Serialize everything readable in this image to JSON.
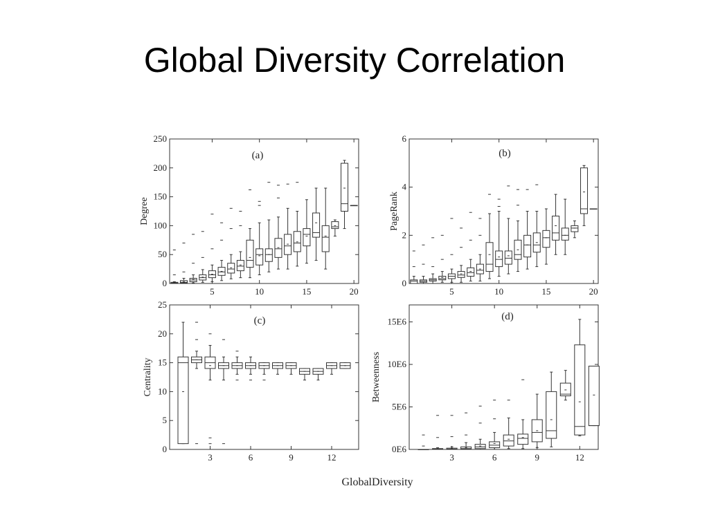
{
  "slide": {
    "title": "Global Diversity Correlation"
  },
  "figure": {
    "xlabel": "GlobalDiversity"
  },
  "chart_data": [
    {
      "type": "box",
      "panel_label": "(a)",
      "ylabel": "Degree",
      "xlim": [
        0.5,
        20.5
      ],
      "ylim": [
        0,
        250
      ],
      "xticks": [
        5,
        10,
        15,
        20
      ],
      "yticks": [
        0,
        50,
        100,
        150,
        200,
        250
      ],
      "boxes": [
        {
          "x": 1,
          "q1": 0,
          "med": 1,
          "q3": 2,
          "wlo": 0,
          "whi": 3,
          "mean": 1.5,
          "outliers": [
            15,
            58
          ]
        },
        {
          "x": 2,
          "q1": 1,
          "med": 2,
          "q3": 5,
          "wlo": 0,
          "whi": 9,
          "mean": 3,
          "outliers": [
            20,
            70
          ]
        },
        {
          "x": 3,
          "q1": 3,
          "med": 6,
          "q3": 9,
          "wlo": 1,
          "whi": 15,
          "mean": 7,
          "outliers": [
            35,
            85
          ]
        },
        {
          "x": 4,
          "q1": 6,
          "med": 10,
          "q3": 15,
          "wlo": 2,
          "whi": 24,
          "mean": 11,
          "outliers": [
            45,
            90
          ]
        },
        {
          "x": 5,
          "q1": 10,
          "med": 15,
          "q3": 22,
          "wlo": 3,
          "whi": 32,
          "mean": 16,
          "outliers": [
            60,
            120
          ]
        },
        {
          "x": 6,
          "q1": 14,
          "med": 20,
          "q3": 28,
          "wlo": 5,
          "whi": 40,
          "mean": 21,
          "outliers": [
            75,
            105
          ]
        },
        {
          "x": 7,
          "q1": 18,
          "med": 25,
          "q3": 35,
          "wlo": 8,
          "whi": 50,
          "mean": 27,
          "outliers": [
            95,
            130
          ]
        },
        {
          "x": 8,
          "q1": 22,
          "med": 30,
          "q3": 40,
          "wlo": 10,
          "whi": 55,
          "mean": 32,
          "outliers": [
            100,
            125
          ]
        },
        {
          "x": 9,
          "q1": 28,
          "med": 40,
          "q3": 75,
          "wlo": 10,
          "whi": 95,
          "mean": 45,
          "outliers": [
            162
          ]
        },
        {
          "x": 10,
          "q1": 32,
          "med": 50,
          "q3": 60,
          "wlo": 15,
          "whi": 105,
          "mean": 48,
          "outliers": [
            135,
            142
          ]
        },
        {
          "x": 11,
          "q1": 38,
          "med": 50,
          "q3": 60,
          "wlo": 20,
          "whi": 110,
          "mean": 50,
          "outliers": [
            175
          ]
        },
        {
          "x": 12,
          "q1": 45,
          "med": 60,
          "q3": 78,
          "wlo": 25,
          "whi": 115,
          "mean": 62,
          "outliers": [
            148,
            170
          ]
        },
        {
          "x": 13,
          "q1": 50,
          "med": 65,
          "q3": 85,
          "wlo": 25,
          "whi": 130,
          "mean": 68,
          "outliers": [
            172
          ]
        },
        {
          "x": 14,
          "q1": 55,
          "med": 70,
          "q3": 90,
          "wlo": 30,
          "whi": 125,
          "mean": 72,
          "outliers": [
            175
          ]
        },
        {
          "x": 15,
          "q1": 65,
          "med": 85,
          "q3": 95,
          "wlo": 35,
          "whi": 145,
          "mean": 82,
          "outliers": []
        },
        {
          "x": 16,
          "q1": 80,
          "med": 88,
          "q3": 122,
          "wlo": 40,
          "whi": 165,
          "mean": 105,
          "outliers": []
        },
        {
          "x": 17,
          "q1": 55,
          "med": 80,
          "q3": 100,
          "wlo": 25,
          "whi": 165,
          "mean": 82,
          "outliers": []
        },
        {
          "x": 18,
          "q1": 95,
          "med": 98,
          "q3": 107,
          "wlo": 82,
          "whi": 110,
          "mean": 100,
          "outliers": []
        },
        {
          "x": 19,
          "q1": 125,
          "med": 138,
          "q3": 208,
          "wlo": 95,
          "whi": 213,
          "mean": 165,
          "outliers": []
        },
        {
          "x": 20,
          "q1": 135,
          "med": 135,
          "q3": 135,
          "wlo": 135,
          "whi": 135,
          "mean": 135,
          "outliers": []
        }
      ]
    },
    {
      "type": "box",
      "panel_label": "(b)",
      "ylabel": "PageRank",
      "xlim": [
        0.5,
        20.5
      ],
      "ylim": [
        0,
        6
      ],
      "xticks": [
        5,
        10,
        15,
        20
      ],
      "yticks": [
        0,
        2,
        4,
        6
      ],
      "boxes": [
        {
          "x": 1,
          "q1": 0.0,
          "med": 0.1,
          "q3": 0.15,
          "wlo": 0.0,
          "whi": 0.3,
          "mean": 0.1,
          "outliers": [
            0.7,
            1.35
          ]
        },
        {
          "x": 2,
          "q1": 0.05,
          "med": 0.1,
          "q3": 0.15,
          "wlo": 0.0,
          "whi": 0.3,
          "mean": 0.1,
          "outliers": [
            0.8,
            1.6
          ]
        },
        {
          "x": 3,
          "q1": 0.1,
          "med": 0.15,
          "q3": 0.2,
          "wlo": 0.0,
          "whi": 0.4,
          "mean": 0.15,
          "outliers": [
            0.7,
            1.9
          ]
        },
        {
          "x": 4,
          "q1": 0.15,
          "med": 0.2,
          "q3": 0.3,
          "wlo": 0.05,
          "whi": 0.5,
          "mean": 0.25,
          "outliers": [
            1.0,
            2.0
          ]
        },
        {
          "x": 5,
          "q1": 0.2,
          "med": 0.3,
          "q3": 0.4,
          "wlo": 0.05,
          "whi": 0.6,
          "mean": 0.3,
          "outliers": [
            1.2,
            2.7
          ]
        },
        {
          "x": 6,
          "q1": 0.25,
          "med": 0.35,
          "q3": 0.5,
          "wlo": 0.05,
          "whi": 0.75,
          "mean": 0.4,
          "outliers": [
            1.5,
            2.3
          ]
        },
        {
          "x": 7,
          "q1": 0.3,
          "med": 0.45,
          "q3": 0.65,
          "wlo": 0.1,
          "whi": 1.0,
          "mean": 0.5,
          "outliers": [
            1.8,
            2.95
          ]
        },
        {
          "x": 8,
          "q1": 0.4,
          "med": 0.55,
          "q3": 0.8,
          "wlo": 0.1,
          "whi": 1.2,
          "mean": 0.6,
          "outliers": [
            2.0,
            2.7
          ]
        },
        {
          "x": 9,
          "q1": 0.5,
          "med": 0.8,
          "q3": 1.7,
          "wlo": 0.2,
          "whi": 2.9,
          "mean": 1.2,
          "outliers": [
            3.7
          ]
        },
        {
          "x": 10,
          "q1": 0.7,
          "med": 1.0,
          "q3": 1.35,
          "wlo": 0.3,
          "whi": 3.0,
          "mean": 1.1,
          "outliers": [
            3.2,
            3.5
          ]
        },
        {
          "x": 11,
          "q1": 0.8,
          "med": 1.05,
          "q3": 1.35,
          "wlo": 0.4,
          "whi": 2.7,
          "mean": 1.15,
          "outliers": [
            4.05
          ]
        },
        {
          "x": 12,
          "q1": 1.0,
          "med": 1.2,
          "q3": 1.8,
          "wlo": 0.5,
          "whi": 2.6,
          "mean": 1.4,
          "outliers": [
            3.25,
            3.9
          ]
        },
        {
          "x": 13,
          "q1": 1.1,
          "med": 1.6,
          "q3": 2.0,
          "wlo": 0.6,
          "whi": 3.0,
          "mean": 1.6,
          "outliers": [
            3.9
          ]
        },
        {
          "x": 14,
          "q1": 1.3,
          "med": 1.6,
          "q3": 2.1,
          "wlo": 0.7,
          "whi": 3.0,
          "mean": 1.7,
          "outliers": [
            4.1
          ]
        },
        {
          "x": 15,
          "q1": 1.5,
          "med": 1.9,
          "q3": 2.2,
          "wlo": 0.8,
          "whi": 3.1,
          "mean": 1.9,
          "outliers": []
        },
        {
          "x": 16,
          "q1": 1.8,
          "med": 2.1,
          "q3": 2.8,
          "wlo": 1.2,
          "whi": 3.7,
          "mean": 2.4,
          "outliers": []
        },
        {
          "x": 17,
          "q1": 1.8,
          "med": 2.0,
          "q3": 2.3,
          "wlo": 1.2,
          "whi": 3.5,
          "mean": 2.0,
          "outliers": []
        },
        {
          "x": 18,
          "q1": 2.15,
          "med": 2.3,
          "q3": 2.4,
          "wlo": 1.9,
          "whi": 2.6,
          "mean": 2.3,
          "outliers": []
        },
        {
          "x": 19,
          "q1": 2.9,
          "med": 3.1,
          "q3": 4.8,
          "wlo": 2.4,
          "whi": 4.9,
          "mean": 3.8,
          "outliers": []
        },
        {
          "x": 20,
          "q1": 3.1,
          "med": 3.1,
          "q3": 3.1,
          "wlo": 3.1,
          "whi": 3.1,
          "mean": 3.1,
          "outliers": []
        }
      ]
    },
    {
      "type": "box",
      "panel_label": "(c)",
      "ylabel": "Centrality",
      "xlim": [
        0,
        14
      ],
      "ylim": [
        0,
        25
      ],
      "xticks": [
        3,
        6,
        9,
        12
      ],
      "yticks": [
        0,
        5,
        10,
        15,
        20,
        25
      ],
      "boxes": [
        {
          "x": 1,
          "q1": 1,
          "med": 15,
          "q3": 16,
          "wlo": 1,
          "whi": 22,
          "mean": 10,
          "outliers": []
        },
        {
          "x": 2,
          "q1": 15,
          "med": 15.5,
          "q3": 16,
          "wlo": 14,
          "whi": 17,
          "mean": 15.5,
          "outliers": [
            1,
            19,
            22
          ]
        },
        {
          "x": 3,
          "q1": 14,
          "med": 15,
          "q3": 16,
          "wlo": 12,
          "whi": 18,
          "mean": 14.5,
          "outliers": [
            1,
            2,
            20
          ]
        },
        {
          "x": 4,
          "q1": 14,
          "med": 14.5,
          "q3": 15,
          "wlo": 12,
          "whi": 16,
          "mean": 14.5,
          "outliers": [
            1,
            19
          ]
        },
        {
          "x": 5,
          "q1": 14,
          "med": 14.5,
          "q3": 15,
          "wlo": 13,
          "whi": 16,
          "mean": 14.5,
          "outliers": [
            12,
            17
          ]
        },
        {
          "x": 6,
          "q1": 14,
          "med": 14.5,
          "q3": 15,
          "wlo": 13,
          "whi": 16,
          "mean": 14.5,
          "outliers": [
            12
          ]
        },
        {
          "x": 7,
          "q1": 14,
          "med": 14.5,
          "q3": 15,
          "wlo": 13,
          "whi": 15,
          "mean": 14.5,
          "outliers": [
            12
          ]
        },
        {
          "x": 8,
          "q1": 14,
          "med": 14.5,
          "q3": 15,
          "wlo": 13,
          "whi": 15,
          "mean": 14.5,
          "outliers": []
        },
        {
          "x": 9,
          "q1": 14,
          "med": 14.5,
          "q3": 15,
          "wlo": 13,
          "whi": 15,
          "mean": 14.5,
          "outliers": []
        },
        {
          "x": 10,
          "q1": 13,
          "med": 13.5,
          "q3": 14,
          "wlo": 12,
          "whi": 14,
          "mean": 13.5,
          "outliers": []
        },
        {
          "x": 11,
          "q1": 13,
          "med": 13.5,
          "q3": 14,
          "wlo": 12,
          "whi": 14,
          "mean": 13.5,
          "outliers": []
        },
        {
          "x": 12,
          "q1": 14,
          "med": 14.5,
          "q3": 15,
          "wlo": 13,
          "whi": 15,
          "mean": 14.5,
          "outliers": []
        },
        {
          "x": 13,
          "q1": 14,
          "med": 14.5,
          "q3": 15,
          "wlo": 14,
          "whi": 15,
          "mean": 14.5,
          "outliers": []
        }
      ]
    },
    {
      "type": "box",
      "panel_label": "(d)",
      "ylabel": "Betweenness",
      "xlim": [
        0,
        13.3
      ],
      "ylim": [
        0,
        17000000
      ],
      "xticks": [
        3,
        6,
        9,
        12
      ],
      "ytick_values": [
        0,
        5000000,
        10000000,
        15000000
      ],
      "ytick_labels": [
        "0E6",
        "5E6",
        "10E6",
        "15E6"
      ],
      "boxes": [
        {
          "x": 1,
          "q1": 0,
          "med": 0,
          "q3": 0,
          "wlo": 0,
          "whi": 0,
          "mean": 0,
          "outliers": [
            400000,
            1700000
          ]
        },
        {
          "x": 2,
          "q1": 0,
          "med": 50000,
          "q3": 100000,
          "wlo": 0,
          "whi": 200000,
          "mean": 50000,
          "outliers": [
            1400000,
            4000000
          ]
        },
        {
          "x": 3,
          "q1": 0,
          "med": 50000,
          "q3": 150000,
          "wlo": 0,
          "whi": 300000,
          "mean": 100000,
          "outliers": [
            1500000,
            4000000
          ]
        },
        {
          "x": 4,
          "q1": 50000,
          "med": 100000,
          "q3": 300000,
          "wlo": 0,
          "whi": 800000,
          "mean": 200000,
          "outliers": [
            1700000,
            4300000
          ]
        },
        {
          "x": 5,
          "q1": 100000,
          "med": 300000,
          "q3": 600000,
          "wlo": 0,
          "whi": 1200000,
          "mean": 400000,
          "outliers": [
            3100000,
            5100000
          ]
        },
        {
          "x": 6,
          "q1": 200000,
          "med": 500000,
          "q3": 900000,
          "wlo": 0,
          "whi": 2000000,
          "mean": 700000,
          "outliers": [
            3600000,
            5800000
          ]
        },
        {
          "x": 7,
          "q1": 400000,
          "med": 1000000,
          "q3": 1700000,
          "wlo": 100000,
          "whi": 3700000,
          "mean": 1200000,
          "outliers": [
            5800000
          ]
        },
        {
          "x": 8,
          "q1": 600000,
          "med": 1300000,
          "q3": 1800000,
          "wlo": 100000,
          "whi": 3500000,
          "mean": 1400000,
          "outliers": [
            8200000
          ]
        },
        {
          "x": 9,
          "q1": 900000,
          "med": 2000000,
          "q3": 3500000,
          "wlo": 200000,
          "whi": 6500000,
          "mean": 2200000,
          "outliers": []
        },
        {
          "x": 10,
          "q1": 1300000,
          "med": 2200000,
          "q3": 6800000,
          "wlo": 300000,
          "whi": 9100000,
          "mean": 3500000,
          "outliers": []
        },
        {
          "x": 11,
          "q1": 6300000,
          "med": 6500000,
          "q3": 7800000,
          "wlo": 5800000,
          "whi": 9300000,
          "mean": 7000000,
          "outliers": []
        },
        {
          "x": 12,
          "q1": 1700000,
          "med": 2700000,
          "q3": 12300000,
          "wlo": 1600000,
          "whi": 15300000,
          "mean": 5600000,
          "outliers": []
        },
        {
          "x": 13,
          "q1": 2800000,
          "med": 2800000,
          "q3": 9800000,
          "wlo": 2800000,
          "whi": 9800000,
          "mean": 6400000,
          "outliers": []
        }
      ]
    }
  ]
}
